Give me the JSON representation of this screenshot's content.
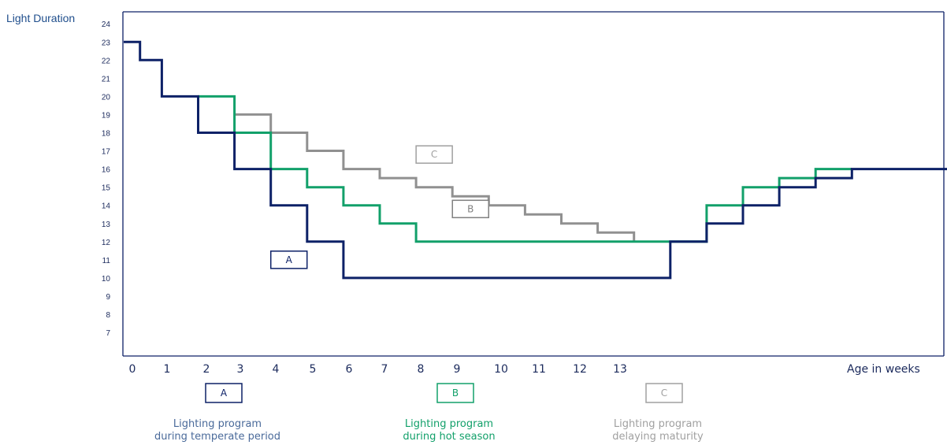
{
  "chart_data": {
    "type": "line",
    "step": true,
    "ylabel": "Light Duration",
    "xlabel": "Age in weeks",
    "ylim": [
      6,
      24
    ],
    "y_ticks": [
      7,
      8,
      9,
      10,
      11,
      12,
      13,
      14,
      15,
      16,
      17,
      18,
      19,
      20,
      21,
      22,
      23,
      24
    ],
    "x_ticks": [
      0,
      1,
      2,
      3,
      4,
      5,
      6,
      7,
      8,
      9,
      10,
      11,
      12,
      13
    ],
    "xlim": [
      -0.25,
      22.6
    ],
    "series": [
      {
        "name": "A",
        "color": "#0d2167",
        "x": [
          -0.25,
          0.2,
          0.8,
          1.8,
          2.8,
          3.8,
          4.8,
          5.8,
          14.8,
          15.8,
          16.8,
          17.8,
          18.8,
          19.8,
          22.6
        ],
        "values": [
          23,
          22,
          20,
          18,
          16,
          14,
          12,
          10,
          12,
          13,
          14,
          15,
          15.5,
          16,
          16
        ]
      },
      {
        "name": "B",
        "color": "#12a06a",
        "x": [
          1.8,
          2.8,
          3.8,
          4.8,
          5.8,
          6.8,
          7.8,
          14.8,
          15.8,
          16.8,
          17.8,
          18.8,
          19.8
        ],
        "values": [
          20,
          18,
          16,
          15,
          14,
          13,
          12,
          12,
          14,
          15,
          15.5,
          16,
          16
        ]
      },
      {
        "name": "C",
        "color": "#909090",
        "x": [
          2.8,
          3.8,
          4.8,
          5.8,
          6.8,
          7.8,
          8.8,
          9.8,
          10.8,
          11.8,
          12.8,
          13.8
        ],
        "values": [
          19,
          18,
          17,
          16,
          15.5,
          15,
          14.5,
          14,
          13.5,
          13,
          12.5,
          12
        ]
      }
    ],
    "annotations": [
      {
        "series": "A",
        "text": "A",
        "color": "#0d2167",
        "x": 4.3,
        "y": 11
      },
      {
        "series": "B",
        "text": "B",
        "color": "#808080",
        "x": 9.3,
        "y": 13.8
      },
      {
        "series": "C",
        "text": "C",
        "color": "#a0a0a0",
        "x": 8.3,
        "y": 16.8
      }
    ]
  },
  "legend": [
    {
      "key": "A",
      "color": "#0d2167",
      "text_color": "#4a6a9a",
      "line1": "Lighting program",
      "line2": "during temperate period"
    },
    {
      "key": "B",
      "color": "#12a06a",
      "text_color": "#12a06a",
      "line1": "Lighting program",
      "line2": "during hot season"
    },
    {
      "key": "C",
      "color": "#a0a0a0",
      "text_color": "#a0a0a0",
      "line1": "Lighting program",
      "line2": "delaying maturity"
    }
  ]
}
